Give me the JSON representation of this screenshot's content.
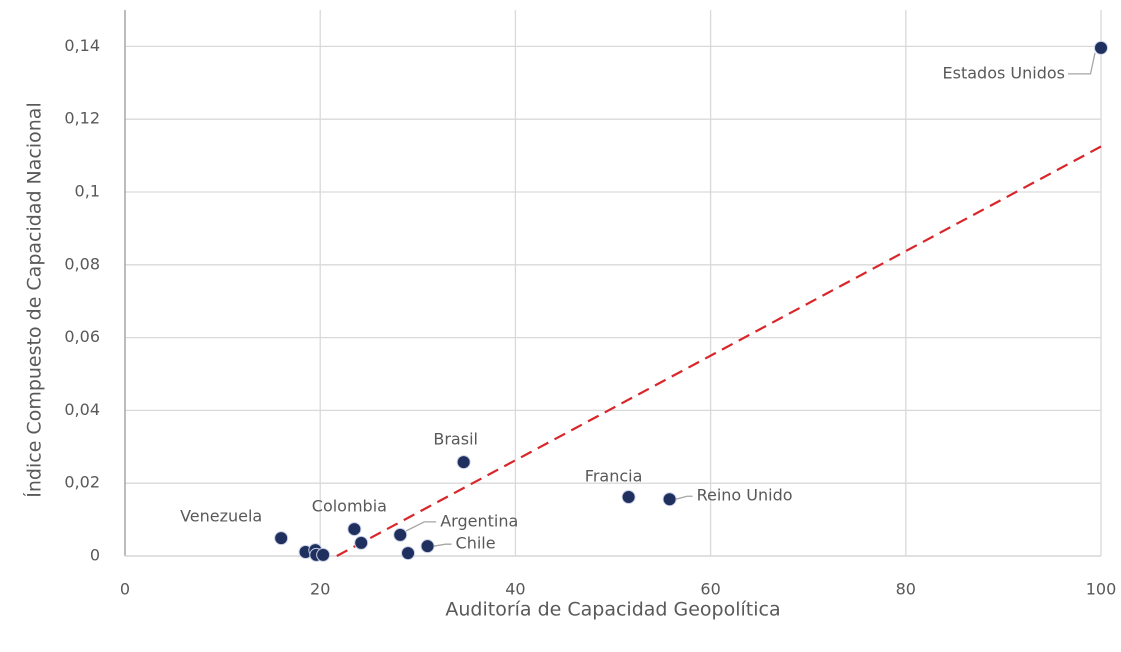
{
  "chart_data": {
    "type": "scatter",
    "x_label": "Auditoría de Capacidad Geopolítica",
    "y_label": "Índice Compuesto de Capacidad Nacional",
    "x": [
      100,
      34.7,
      51.6,
      55.8,
      16.0,
      23.5,
      28.2,
      31.0,
      24.2,
      29.0,
      18.5,
      19.5,
      19.6,
      20.3
    ],
    "y": [
      0.1396,
      0.0258,
      0.0162,
      0.0156,
      0.0049,
      0.0074,
      0.0058,
      0.0027,
      0.0036,
      0.0008,
      0.0011,
      0.0016,
      0.0003,
      0.0003
    ],
    "point_labels": [
      "Estados Unidos",
      "Brasil",
      "Francia",
      "Reino Unido",
      "Venezuela",
      "Colombia",
      "Argentina",
      "Chile",
      null,
      null,
      null,
      null,
      null,
      null
    ],
    "color": "#1f2f5e",
    "trendline": {
      "x": [
        21.7,
        100
      ],
      "y": [
        0,
        0.1125
      ],
      "color": "#d9262b"
    },
    "xlim": [
      0,
      100
    ],
    "ylim": [
      0,
      0.15
    ],
    "xticks": [
      0,
      20,
      40,
      60,
      80,
      100
    ],
    "yticks": [
      0,
      {
        "value": 0.02,
        "label": "0,02"
      },
      {
        "value": 0.04,
        "label": "0,04"
      },
      {
        "value": 0.06,
        "label": "0,06"
      },
      {
        "value": 0.08,
        "label": "0,08"
      },
      {
        "value": 0.1,
        "label": "0,1"
      },
      {
        "value": 0.12,
        "label": "0,12"
      },
      {
        "value": 0.14,
        "label": "0,14"
      }
    ],
    "grid": true
  }
}
